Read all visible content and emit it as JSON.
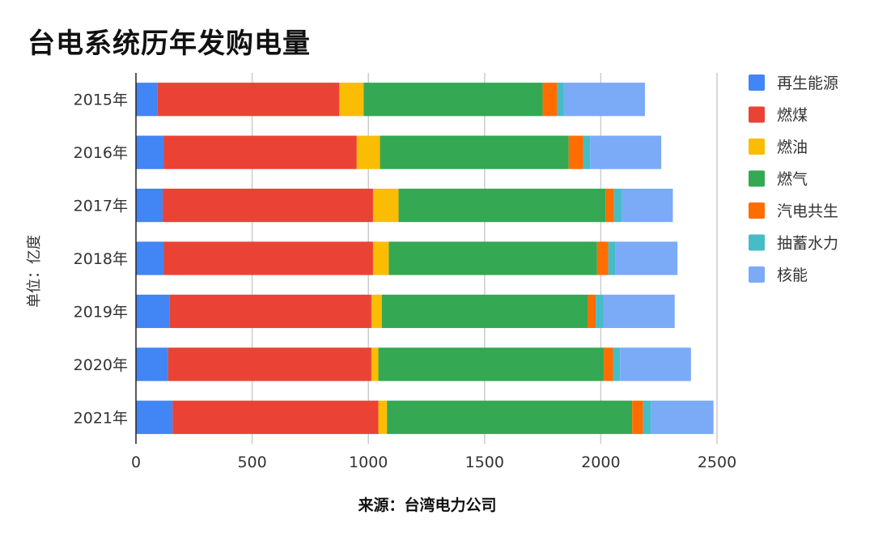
{
  "chart_data": {
    "type": "bar",
    "orientation": "horizontal",
    "stacked": true,
    "title": "台电系统历年发购电量",
    "ylabel": "单位：亿度",
    "source": "来源：台湾电力公司",
    "xlim": [
      0,
      2500
    ],
    "xticks": [
      0,
      500,
      1000,
      1500,
      2000,
      2500
    ],
    "grid": true,
    "legend_position": "right",
    "categories": [
      "2015年",
      "2016年",
      "2017年",
      "2018年",
      "2019年",
      "2020年",
      "2021年"
    ],
    "series": [
      {
        "name": "再生能源",
        "color": "#4285F4",
        "values": [
          93,
          120,
          115,
          120,
          145,
          138,
          158
        ]
      },
      {
        "name": "燃煤",
        "color": "#EA4335",
        "values": [
          782,
          830,
          905,
          900,
          868,
          875,
          885
        ]
      },
      {
        "name": "燃油",
        "color": "#FBBC04",
        "values": [
          105,
          100,
          110,
          68,
          45,
          30,
          37
        ]
      },
      {
        "name": "燃气",
        "color": "#34A853",
        "values": [
          770,
          812,
          890,
          896,
          885,
          970,
          1055
        ]
      },
      {
        "name": "汽电共生",
        "color": "#FF6D01",
        "values": [
          62,
          62,
          37,
          48,
          35,
          40,
          47
        ]
      },
      {
        "name": "抽蓄水力",
        "color": "#46BDC6",
        "values": [
          28,
          30,
          35,
          32,
          33,
          30,
          35
        ]
      },
      {
        "name": "核能",
        "color": "#7BAAF7",
        "values": [
          350,
          306,
          218,
          266,
          307,
          305,
          268
        ]
      }
    ]
  }
}
